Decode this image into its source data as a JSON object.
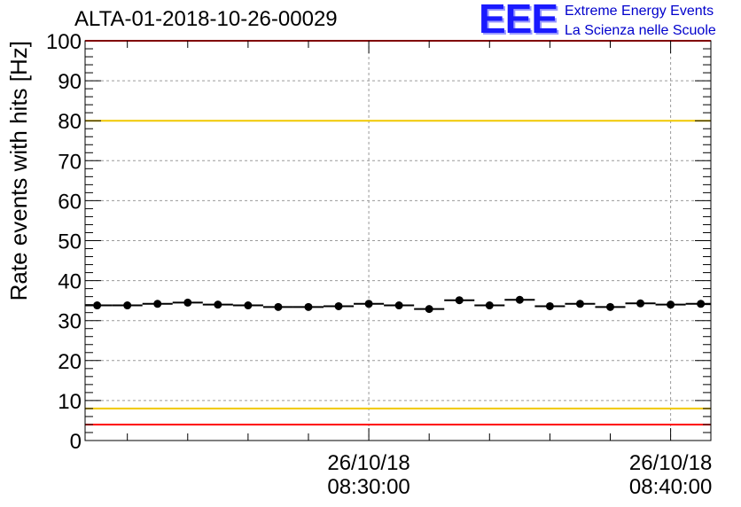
{
  "header": {
    "run_title": "ALTA-01-2018-10-26-00029",
    "logo": {
      "letters": "EEE",
      "line1": "Extreme Energy Events",
      "line2": "La Scienza nelle Scuole"
    }
  },
  "chart_data": {
    "type": "scatter",
    "title": "ALTA-01-2018-10-26-00029",
    "xlabel": "",
    "ylabel": "Rate events with hits [Hz]",
    "ylim": [
      0,
      100
    ],
    "yticks": [
      0,
      10,
      20,
      30,
      40,
      50,
      60,
      70,
      80,
      90,
      100
    ],
    "xlim": [
      "2018-10-26 08:20:36",
      "2018-10-26 08:41:20"
    ],
    "xticks": [
      {
        "x": "2018-10-26 08:30:00",
        "date": "26/10/18",
        "time": "08:30:00"
      },
      {
        "x": "2018-10-26 08:40:00",
        "date": "26/10/18",
        "time": "08:40:00"
      }
    ],
    "grid": true,
    "series": [
      {
        "marker_color": "#000000",
        "x_bin_width_seconds": 60,
        "points": [
          {
            "x": "2018-10-26 08:21:00",
            "y": 33.8
          },
          {
            "x": "2018-10-26 08:22:00",
            "y": 33.8
          },
          {
            "x": "2018-10-26 08:23:00",
            "y": 34.2
          },
          {
            "x": "2018-10-26 08:24:00",
            "y": 34.5
          },
          {
            "x": "2018-10-26 08:25:00",
            "y": 34.0
          },
          {
            "x": "2018-10-26 08:26:00",
            "y": 33.8
          },
          {
            "x": "2018-10-26 08:27:00",
            "y": 33.4
          },
          {
            "x": "2018-10-26 08:28:00",
            "y": 33.4
          },
          {
            "x": "2018-10-26 08:29:00",
            "y": 33.6
          },
          {
            "x": "2018-10-26 08:30:00",
            "y": 34.2
          },
          {
            "x": "2018-10-26 08:31:00",
            "y": 33.8
          },
          {
            "x": "2018-10-26 08:32:00",
            "y": 32.9
          },
          {
            "x": "2018-10-26 08:33:00",
            "y": 35.1
          },
          {
            "x": "2018-10-26 08:34:00",
            "y": 33.8
          },
          {
            "x": "2018-10-26 08:35:00",
            "y": 35.2
          },
          {
            "x": "2018-10-26 08:36:00",
            "y": 33.6
          },
          {
            "x": "2018-10-26 08:37:00",
            "y": 34.2
          },
          {
            "x": "2018-10-26 08:38:00",
            "y": 33.4
          },
          {
            "x": "2018-10-26 08:39:00",
            "y": 34.3
          },
          {
            "x": "2018-10-26 08:40:00",
            "y": 34.0
          },
          {
            "x": "2018-10-26 08:41:00",
            "y": 34.2
          }
        ]
      }
    ],
    "reference_lines": [
      {
        "y": 100,
        "color": "#ff0000"
      },
      {
        "y": 80,
        "color": "#f0c800"
      },
      {
        "y": 8,
        "color": "#f0c800"
      },
      {
        "y": 4,
        "color": "#ff0000"
      }
    ]
  }
}
